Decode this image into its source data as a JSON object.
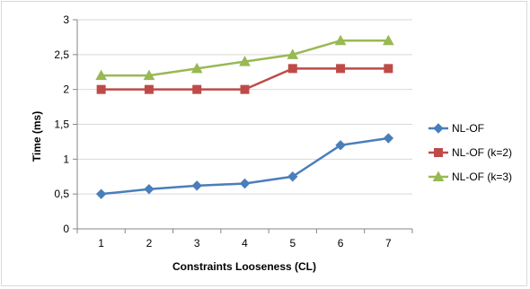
{
  "chart_data": {
    "type": "line",
    "title": "",
    "xlabel": "Constraints Looseness (CL)",
    "ylabel": "Time (ms)",
    "x": [
      1,
      2,
      3,
      4,
      5,
      6,
      7
    ],
    "x_tick_labels": [
      "1",
      "2",
      "3",
      "4",
      "5",
      "6",
      "7"
    ],
    "ylim": [
      0,
      3
    ],
    "y_ticks": [
      0,
      0.5,
      1,
      1.5,
      2,
      2.5,
      3
    ],
    "y_tick_labels": [
      "0",
      "0,5",
      "1",
      "1,5",
      "2",
      "2,5",
      "3"
    ],
    "grid": "horizontal",
    "legend_position": "right",
    "series": [
      {
        "name": "NL-OF",
        "color": "#4a7ebb",
        "marker": "diamond",
        "values": [
          0.5,
          0.57,
          0.62,
          0.65,
          0.75,
          1.2,
          1.3
        ]
      },
      {
        "name": "NL-OF (k=2)",
        "color": "#be4b48",
        "marker": "square",
        "values": [
          2.0,
          2.0,
          2.0,
          2.0,
          2.3,
          2.3,
          2.3
        ]
      },
      {
        "name": "NL-OF (k=3)",
        "color": "#98b954",
        "marker": "triangle",
        "values": [
          2.2,
          2.2,
          2.3,
          2.4,
          2.5,
          2.7,
          2.7
        ]
      }
    ]
  }
}
